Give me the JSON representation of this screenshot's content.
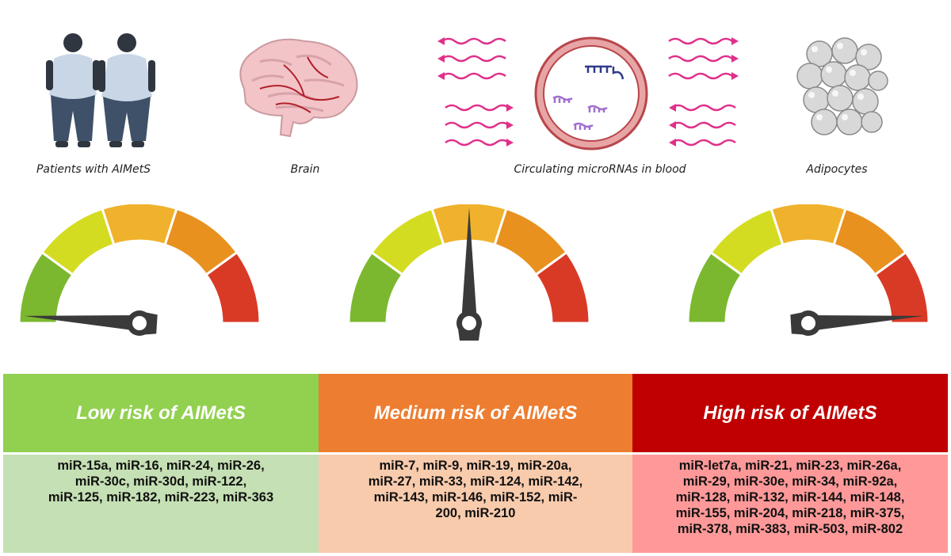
{
  "captions": {
    "patients": "Patients with AIMetS",
    "brain": "Brain",
    "blood": "Circulating microRNAs in blood",
    "adipocytes": "Adipocytes"
  },
  "gauges": [
    {
      "risk_level": "low",
      "needle_fraction": 0.02
    },
    {
      "risk_level": "medium",
      "needle_fraction": 0.5
    },
    {
      "risk_level": "high",
      "needle_fraction": 0.98
    }
  ],
  "gauge_colors": [
    "#7cb82f",
    "#d4dc22",
    "#f0b12c",
    "#e8911e",
    "#d93a26"
  ],
  "panels": [
    {
      "title": "Low risk of AIMetS",
      "header_color": "#92d050",
      "body_color": "#c5e0b4",
      "lines": [
        "miR-15a, miR-16, miR-24, miR-26,",
        "miR-30c, miR-30d, miR-122,",
        "miR-125, miR-182, miR-223, miR-363"
      ]
    },
    {
      "title": "Medium risk of AIMetS",
      "header_color": "#ed7d31",
      "body_color": "#f8cbad",
      "lines": [
        "miR-7, miR-9, miR-19, miR-20a,",
        "miR-27, miR-33, miR-124, miR-142,",
        "miR-143, miR-146, miR-152, miR-",
        "200, miR-210"
      ]
    },
    {
      "title": "High risk of AIMetS",
      "header_color": "#c00000",
      "body_color": "#ff9999",
      "lines": [
        "miR-let7a, miR-21, miR-23, miR-26a,",
        "miR-29, miR-30e, miR-34, miR-92a,",
        "miR-128, miR-132, miR-144,  miR-148,",
        "miR-155, miR-204,  miR-218, miR-375,",
        "miR-378, miR-383, miR-503, miR-802"
      ]
    }
  ]
}
